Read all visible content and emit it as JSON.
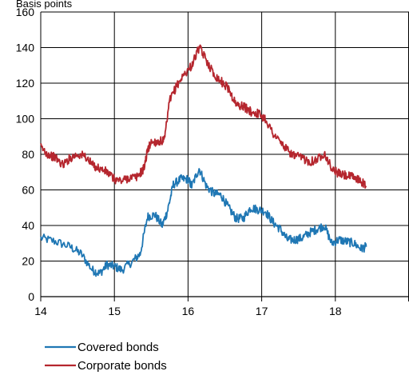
{
  "chart_data": {
    "type": "line",
    "title": "",
    "ylabel": "Basis points",
    "xlabel": "",
    "xlim": [
      14,
      19
    ],
    "ylim": [
      0,
      160
    ],
    "x_ticks": [
      "14",
      "15",
      "16",
      "17",
      "18"
    ],
    "y_ticks": [
      "0",
      "20",
      "40",
      "60",
      "80",
      "100",
      "120",
      "140",
      "160"
    ],
    "grid": true,
    "legend_position": "bottom-left",
    "series": [
      {
        "name": "Covered bonds",
        "color": "#1f77b4",
        "points": [
          [
            14.0,
            33
          ],
          [
            14.2,
            31
          ],
          [
            14.4,
            28
          ],
          [
            14.55,
            24
          ],
          [
            14.7,
            15
          ],
          [
            14.8,
            13
          ],
          [
            14.9,
            18
          ],
          [
            15.0,
            17
          ],
          [
            15.1,
            15
          ],
          [
            15.25,
            20
          ],
          [
            15.35,
            24
          ],
          [
            15.45,
            45
          ],
          [
            15.55,
            46
          ],
          [
            15.65,
            40
          ],
          [
            15.72,
            48
          ],
          [
            15.8,
            63
          ],
          [
            15.9,
            66
          ],
          [
            16.0,
            66
          ],
          [
            16.05,
            62
          ],
          [
            16.15,
            72
          ],
          [
            16.25,
            62
          ],
          [
            16.35,
            58
          ],
          [
            16.45,
            57
          ],
          [
            16.55,
            50
          ],
          [
            16.65,
            44
          ],
          [
            16.75,
            44
          ],
          [
            16.85,
            50
          ],
          [
            16.95,
            49
          ],
          [
            17.05,
            48
          ],
          [
            17.15,
            42
          ],
          [
            17.25,
            38
          ],
          [
            17.35,
            32
          ],
          [
            17.45,
            32
          ],
          [
            17.55,
            33
          ],
          [
            17.65,
            36
          ],
          [
            17.75,
            38
          ],
          [
            17.85,
            40
          ],
          [
            17.95,
            30
          ],
          [
            18.05,
            32
          ],
          [
            18.15,
            31
          ],
          [
            18.25,
            30
          ],
          [
            18.35,
            27
          ],
          [
            18.42,
            28
          ]
        ]
      },
      {
        "name": "Corporate bonds",
        "color": "#b5262e",
        "points": [
          [
            14.0,
            84
          ],
          [
            14.1,
            80
          ],
          [
            14.2,
            78
          ],
          [
            14.3,
            74
          ],
          [
            14.4,
            78
          ],
          [
            14.5,
            80
          ],
          [
            14.6,
            79
          ],
          [
            14.7,
            74
          ],
          [
            14.8,
            72
          ],
          [
            14.9,
            70
          ],
          [
            15.0,
            66
          ],
          [
            15.1,
            65
          ],
          [
            15.2,
            67
          ],
          [
            15.3,
            67
          ],
          [
            15.4,
            72
          ],
          [
            15.45,
            82
          ],
          [
            15.5,
            87
          ],
          [
            15.6,
            87
          ],
          [
            15.68,
            88
          ],
          [
            15.75,
            110
          ],
          [
            15.85,
            119
          ],
          [
            15.95,
            125
          ],
          [
            16.05,
            130
          ],
          [
            16.15,
            140
          ],
          [
            16.25,
            133
          ],
          [
            16.35,
            125
          ],
          [
            16.45,
            121
          ],
          [
            16.55,
            117
          ],
          [
            16.65,
            108
          ],
          [
            16.75,
            107
          ],
          [
            16.85,
            104
          ],
          [
            16.95,
            103
          ],
          [
            17.05,
            100
          ],
          [
            17.15,
            92
          ],
          [
            17.25,
            87
          ],
          [
            17.35,
            82
          ],
          [
            17.45,
            79
          ],
          [
            17.55,
            78
          ],
          [
            17.65,
            76
          ],
          [
            17.75,
            77
          ],
          [
            17.85,
            81
          ],
          [
            17.95,
            72
          ],
          [
            18.05,
            69
          ],
          [
            18.15,
            68
          ],
          [
            18.25,
            67
          ],
          [
            18.35,
            65
          ],
          [
            18.42,
            62
          ]
        ]
      }
    ]
  }
}
